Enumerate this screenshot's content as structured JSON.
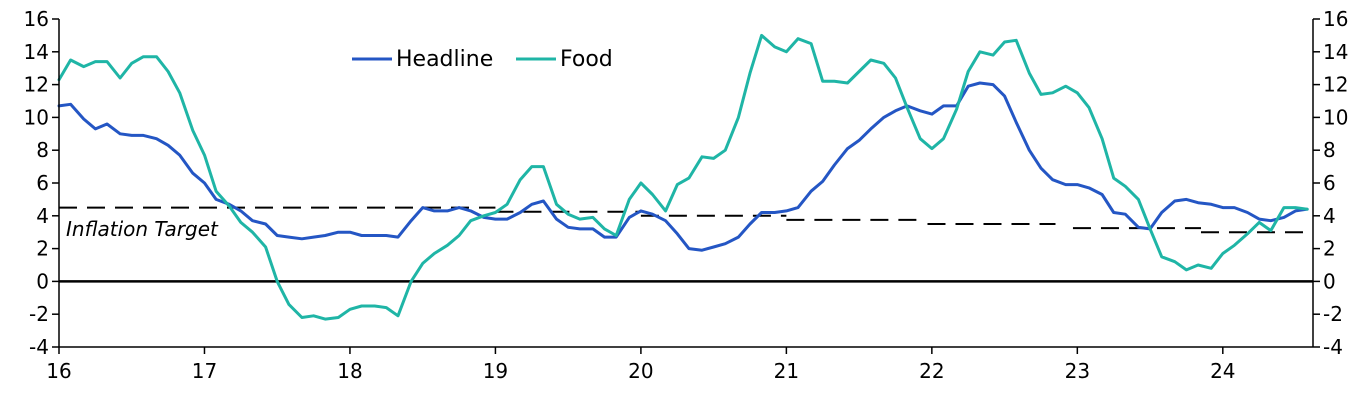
{
  "chart_data": {
    "type": "line",
    "x_tick_labels": [
      "16",
      "17",
      "18",
      "19",
      "20",
      "21",
      "22",
      "23",
      "24"
    ],
    "y_tick_labels": [
      "-4",
      "-2",
      "0",
      "2",
      "4",
      "6",
      "8",
      "10",
      "12",
      "14",
      "16"
    ],
    "ylim": [
      -4,
      16
    ],
    "xlim": [
      16,
      24.62
    ],
    "legend_placement": "top-center",
    "annotation": "Inflation Target",
    "colors": {
      "headline": "#2456c4",
      "food": "#1fb5a6",
      "target": "#000000"
    },
    "series": [
      {
        "name": "Headline",
        "x": [
          16.0,
          16.08,
          16.17,
          16.25,
          16.33,
          16.42,
          16.5,
          16.58,
          16.67,
          16.75,
          16.83,
          16.92,
          17.0,
          17.08,
          17.17,
          17.25,
          17.33,
          17.42,
          17.5,
          17.58,
          17.67,
          17.75,
          17.83,
          17.92,
          18.0,
          18.08,
          18.17,
          18.25,
          18.33,
          18.42,
          18.5,
          18.58,
          18.67,
          18.75,
          18.83,
          18.92,
          19.0,
          19.08,
          19.17,
          19.25,
          19.33,
          19.42,
          19.5,
          19.58,
          19.67,
          19.75,
          19.83,
          19.92,
          20.0,
          20.08,
          20.17,
          20.25,
          20.33,
          20.42,
          20.5,
          20.58,
          20.67,
          20.75,
          20.83,
          20.92,
          21.0,
          21.08,
          21.17,
          21.25,
          21.33,
          21.42,
          21.5,
          21.58,
          21.67,
          21.75,
          21.83,
          21.92,
          22.0,
          22.08,
          22.17,
          22.25,
          22.33,
          22.42,
          22.5,
          22.58,
          22.67,
          22.75,
          22.83,
          22.92,
          23.0,
          23.08,
          23.17,
          23.25,
          23.33,
          23.42,
          23.5,
          23.58,
          23.67,
          23.75,
          23.83,
          23.92,
          24.0,
          24.08,
          24.17,
          24.25,
          24.33,
          24.42,
          24.5,
          24.58
        ],
        "values": [
          10.7,
          10.8,
          9.9,
          9.3,
          9.6,
          9.0,
          8.9,
          8.9,
          8.7,
          8.3,
          7.7,
          6.6,
          6.0,
          5.0,
          4.7,
          4.3,
          3.7,
          3.5,
          2.8,
          2.7,
          2.6,
          2.7,
          2.8,
          3.0,
          3.0,
          2.8,
          2.8,
          2.8,
          2.7,
          3.7,
          4.5,
          4.3,
          4.3,
          4.5,
          4.3,
          3.9,
          3.8,
          3.8,
          4.2,
          4.7,
          4.9,
          3.8,
          3.3,
          3.2,
          3.2,
          2.7,
          2.7,
          3.9,
          4.3,
          4.1,
          3.7,
          2.9,
          2.0,
          1.9,
          2.1,
          2.3,
          2.7,
          3.5,
          4.2,
          4.2,
          4.3,
          4.5,
          5.5,
          6.1,
          7.1,
          8.1,
          8.6,
          9.3,
          10.0,
          10.4,
          10.7,
          10.4,
          10.2,
          10.7,
          10.7,
          11.9,
          12.1,
          12.0,
          11.3,
          9.7,
          8.0,
          6.9,
          6.2,
          5.9,
          5.9,
          5.7,
          5.3,
          4.2,
          4.1,
          3.3,
          3.2,
          4.2,
          4.9,
          5.0,
          4.8,
          4.7,
          4.5,
          4.5,
          4.2,
          3.8,
          3.7,
          3.9,
          4.3,
          4.4
        ]
      },
      {
        "name": "Food",
        "x": [
          16.0,
          16.08,
          16.17,
          16.25,
          16.33,
          16.42,
          16.5,
          16.58,
          16.67,
          16.75,
          16.83,
          16.92,
          17.0,
          17.08,
          17.17,
          17.25,
          17.33,
          17.42,
          17.5,
          17.58,
          17.67,
          17.75,
          17.83,
          17.92,
          18.0,
          18.08,
          18.17,
          18.25,
          18.33,
          18.42,
          18.5,
          18.58,
          18.67,
          18.75,
          18.83,
          18.92,
          19.0,
          19.08,
          19.17,
          19.25,
          19.33,
          19.42,
          19.5,
          19.58,
          19.67,
          19.75,
          19.83,
          19.92,
          20.0,
          20.08,
          20.17,
          20.25,
          20.33,
          20.42,
          20.5,
          20.58,
          20.67,
          20.75,
          20.83,
          20.92,
          21.0,
          21.08,
          21.17,
          21.25,
          21.33,
          21.42,
          21.5,
          21.58,
          21.67,
          21.75,
          21.83,
          21.92,
          22.0,
          22.08,
          22.17,
          22.25,
          22.33,
          22.42,
          22.5,
          22.58,
          22.67,
          22.75,
          22.83,
          22.92,
          23.0,
          23.08,
          23.17,
          23.25,
          23.33,
          23.42,
          23.5,
          23.58,
          23.67,
          23.75,
          23.83,
          23.92,
          24.0,
          24.08,
          24.17,
          24.25,
          24.33,
          24.42,
          24.5,
          24.58
        ],
        "values": [
          12.3,
          13.5,
          13.1,
          13.4,
          13.4,
          12.4,
          13.3,
          13.7,
          13.7,
          12.8,
          11.5,
          9.2,
          7.7,
          5.5,
          4.6,
          3.6,
          3.0,
          2.1,
          0.0,
          -1.4,
          -2.2,
          -2.1,
          -2.3,
          -2.2,
          -1.7,
          -1.5,
          -1.5,
          -1.6,
          -2.1,
          0.0,
          1.1,
          1.7,
          2.2,
          2.8,
          3.7,
          4.0,
          4.2,
          4.7,
          6.2,
          7.0,
          7.0,
          4.7,
          4.1,
          3.8,
          3.9,
          3.2,
          2.8,
          5.0,
          6.0,
          5.3,
          4.3,
          5.9,
          6.3,
          7.6,
          7.5,
          8.0,
          10.0,
          12.7,
          15.0,
          14.3,
          14.0,
          14.8,
          14.5,
          12.2,
          12.2,
          12.1,
          12.8,
          13.5,
          13.3,
          12.4,
          10.6,
          8.7,
          8.1,
          8.7,
          10.5,
          12.8,
          14.0,
          13.8,
          14.6,
          14.7,
          12.7,
          11.4,
          11.5,
          11.9,
          11.5,
          10.6,
          8.7,
          6.3,
          5.8,
          5.0,
          3.2,
          1.5,
          1.2,
          0.7,
          1.0,
          0.8,
          1.7,
          2.2,
          2.9,
          3.6,
          3.1,
          4.5,
          4.5,
          4.4
        ]
      }
    ],
    "target_segments": [
      {
        "x": [
          16.0,
          19.0
        ],
        "value": 4.5
      },
      {
        "x": [
          19.0,
          20.0
        ],
        "value": 4.25
      },
      {
        "x": [
          20.0,
          21.0
        ],
        "value": 4.0
      },
      {
        "x": [
          21.0,
          21.9
        ],
        "value": 3.75
      },
      {
        "x": [
          21.97,
          22.85
        ],
        "value": 3.5
      },
      {
        "x": [
          22.97,
          23.85
        ],
        "value": 3.25
      },
      {
        "x": [
          23.85,
          24.62
        ],
        "value": 3.0
      }
    ]
  }
}
